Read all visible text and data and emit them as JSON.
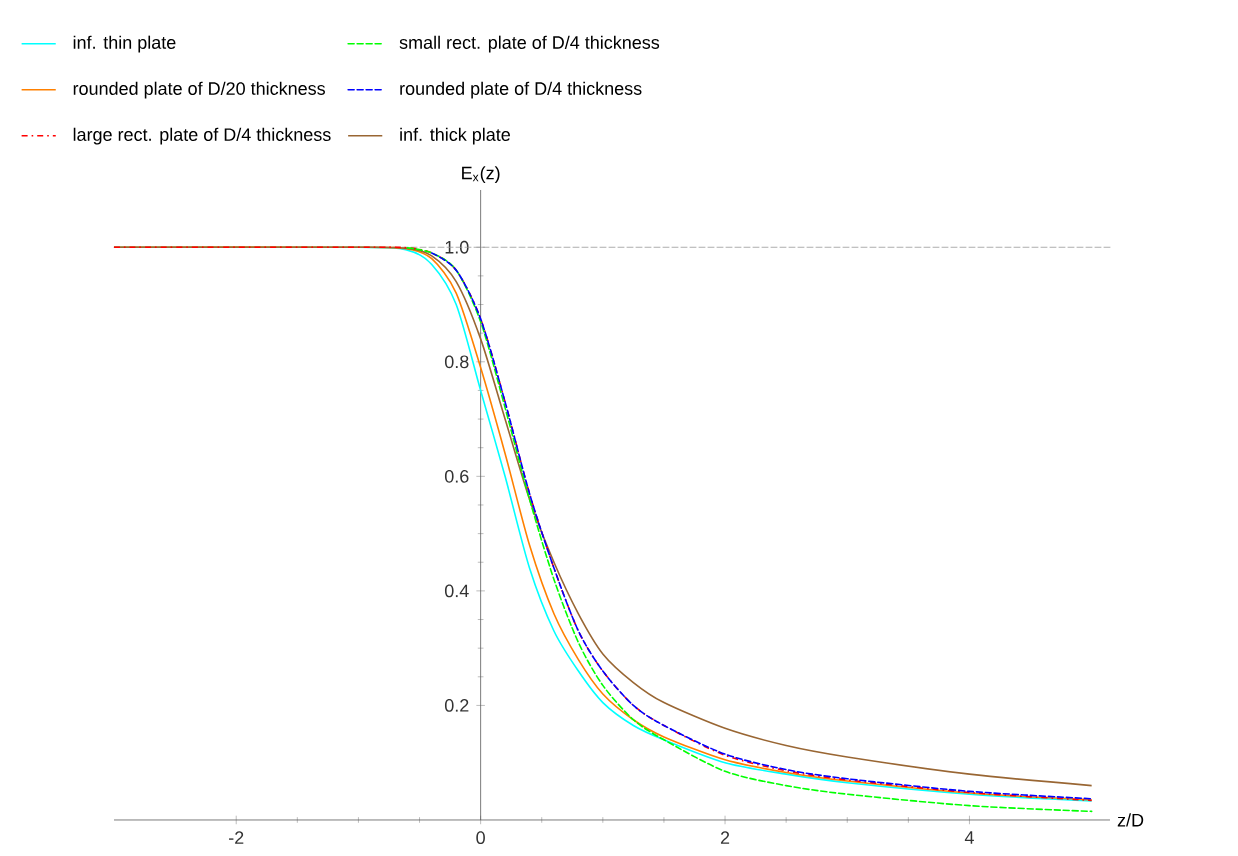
{
  "chart_data": {
    "type": "line",
    "xlabel": "z/D",
    "ylabel": "E$_{x}$(z)",
    "x": [
      -3,
      -1,
      -0.6,
      -0.4,
      -0.2,
      0,
      0.2,
      0.4,
      0.6,
      0.8,
      1,
      1.25,
      1.5,
      2,
      2.5,
      3,
      4,
      5
    ],
    "series": [
      {
        "name": "inf. thin plate",
        "color": "#00ffff",
        "line_style": "solid",
        "values": [
          1,
          1,
          0.995,
          0.97,
          0.9,
          0.75,
          0.6,
          0.44,
          0.33,
          0.26,
          0.205,
          0.165,
          0.14,
          0.1,
          0.08,
          0.065,
          0.045,
          0.033
        ]
      },
      {
        "name": "small rect. plate of D/4 thickness",
        "color": "#00ff00",
        "line_style": "dashed",
        "values": [
          null,
          null,
          0.999,
          0.99,
          0.96,
          0.87,
          0.72,
          0.56,
          0.42,
          0.31,
          0.235,
          0.175,
          0.14,
          0.085,
          0.06,
          0.045,
          0.025,
          0.015
        ]
      },
      {
        "name": "rounded plate of D/20 thickness",
        "color": "#ff8000",
        "line_style": "solid",
        "values": [
          1,
          1,
          0.997,
          0.98,
          0.92,
          0.79,
          0.64,
          0.48,
          0.36,
          0.28,
          0.22,
          0.175,
          0.145,
          0.105,
          0.083,
          0.068,
          0.047,
          0.035
        ]
      },
      {
        "name": "rounded plate of D/4 thickness",
        "color": "#0000ff",
        "line_style": "dashed",
        "values": [
          null,
          null,
          null,
          0.99,
          0.96,
          0.875,
          0.73,
          0.57,
          0.44,
          0.33,
          0.26,
          0.2,
          0.165,
          0.115,
          0.088,
          0.072,
          0.05,
          0.037
        ]
      },
      {
        "name": "large rect. plate of D/4 thickness",
        "color": "#ff0000",
        "line_style": "dashdot",
        "values": [
          1,
          1,
          0.999,
          0.99,
          0.96,
          0.875,
          0.73,
          0.57,
          0.44,
          0.33,
          0.26,
          0.2,
          0.165,
          0.113,
          0.086,
          0.07,
          0.048,
          0.034
        ]
      },
      {
        "name": "inf. thick plate",
        "color": "#996633",
        "line_style": "solid",
        "values": [
          1,
          1,
          0.998,
          0.985,
          0.94,
          0.84,
          0.7,
          0.56,
          0.45,
          0.36,
          0.29,
          0.24,
          0.205,
          0.16,
          0.13,
          0.11,
          0.08,
          0.06
        ]
      }
    ],
    "xlim": [
      -3,
      5.15
    ],
    "ylim": [
      0,
      1.1
    ],
    "xticks": [
      -2,
      0,
      2,
      4
    ],
    "yticks": [
      0.2,
      0.4,
      0.6,
      0.8,
      {
        "value": 1,
        "label": "1.0"
      }
    ],
    "ref_lines": [
      {
        "axis": "y",
        "value": 1,
        "color": "#999999",
        "line_style": "dashed"
      }
    ],
    "legend": "top",
    "grid": false,
    "marker": "none"
  }
}
